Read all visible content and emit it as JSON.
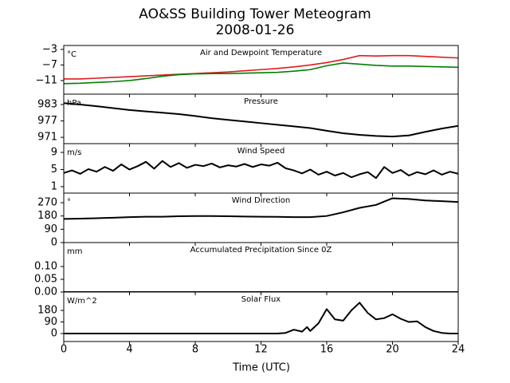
{
  "title": "AO&SS Building Tower Meteogram",
  "subtitle": "2008-01-26",
  "xlabel": "Time (UTC)",
  "xlim": [
    0,
    24
  ],
  "xticks": [
    0,
    4,
    8,
    12,
    16,
    20,
    24
  ],
  "chart_data": [
    {
      "type": "line",
      "title": "Air and Dewpoint Temperature",
      "unit": "°C",
      "x": [
        0,
        1,
        2,
        3,
        4,
        5,
        6,
        7,
        8,
        9,
        10,
        11,
        12,
        13,
        14,
        15,
        16,
        17,
        18,
        19,
        20,
        21,
        22,
        23,
        24
      ],
      "series": [
        {
          "color": "#e41a1c",
          "values": [
            -10.6,
            -10.6,
            -10.4,
            -10.2,
            -10.0,
            -9.8,
            -9.6,
            -9.4,
            -9.2,
            -9.0,
            -8.8,
            -8.5,
            -8.2,
            -7.9,
            -7.5,
            -7.0,
            -6.4,
            -5.6,
            -4.6,
            -4.7,
            -4.6,
            -4.6,
            -4.8,
            -5.0,
            -5.2
          ]
        },
        {
          "color": "#008000",
          "values": [
            -11.8,
            -11.7,
            -11.5,
            -11.3,
            -11.0,
            -10.5,
            -9.9,
            -9.5,
            -9.3,
            -9.2,
            -9.2,
            -9.1,
            -9.0,
            -8.9,
            -8.6,
            -8.2,
            -7.2,
            -6.5,
            -6.8,
            -7.1,
            -7.3,
            -7.3,
            -7.4,
            -7.5,
            -7.6
          ]
        }
      ],
      "ylim": [
        -14.5,
        -2
      ],
      "yticks": [
        {
          "value": -3,
          "label": "−3"
        },
        {
          "value": -7,
          "label": "−7"
        },
        {
          "value": -11,
          "label": "−11"
        }
      ]
    },
    {
      "type": "line",
      "title": "Pressure",
      "unit": "hPa",
      "x": [
        0,
        1,
        2,
        3,
        4,
        5,
        6,
        7,
        8,
        9,
        10,
        11,
        12,
        13,
        14,
        15,
        16,
        17,
        18,
        19,
        20,
        21,
        22,
        23,
        24
      ],
      "series": [
        {
          "color": "#000000",
          "values": [
            983.5,
            983.0,
            982.4,
            981.7,
            981.0,
            980.5,
            980.0,
            979.5,
            978.8,
            978.0,
            977.4,
            976.8,
            976.2,
            975.6,
            975.0,
            974.4,
            973.4,
            972.5,
            971.9,
            971.5,
            971.3,
            971.7,
            973.0,
            974.2,
            975.2
          ]
        }
      ],
      "ylim": [
        968.7,
        986.8
      ],
      "yticks": [
        983,
        977,
        971
      ]
    },
    {
      "type": "line",
      "title": "Wind Speed",
      "unit": "m/s",
      "x": [
        0,
        0.5,
        1,
        1.5,
        2,
        2.5,
        3,
        3.5,
        4,
        4.5,
        5,
        5.5,
        6,
        6.5,
        7,
        7.5,
        8,
        8.5,
        9,
        9.5,
        10,
        10.5,
        11,
        11.5,
        12,
        12.5,
        13,
        13.5,
        14,
        14.5,
        15,
        15.5,
        16,
        16.5,
        17,
        17.5,
        18,
        18.5,
        19,
        19.5,
        20,
        20.5,
        21,
        21.5,
        22,
        22.5,
        23,
        23.5,
        24
      ],
      "series": [
        {
          "color": "#000000",
          "values": [
            4.2,
            4.8,
            4.0,
            5.1,
            4.5,
            5.6,
            4.7,
            6.2,
            5.0,
            5.8,
            6.8,
            5.2,
            7.0,
            5.6,
            6.5,
            5.4,
            6.1,
            5.8,
            6.4,
            5.5,
            6.0,
            5.7,
            6.3,
            5.6,
            6.2,
            5.9,
            6.6,
            5.3,
            4.8,
            4.1,
            5.0,
            3.8,
            4.5,
            3.6,
            4.2,
            3.2,
            3.9,
            4.4,
            3.0,
            5.6,
            4.2,
            4.9,
            3.6,
            4.4,
            3.9,
            4.8,
            3.8,
            4.5,
            4.0
          ]
        }
      ],
      "ylim": [
        -0.5,
        11.05
      ],
      "yticks": [
        9,
        5,
        1
      ]
    },
    {
      "type": "line",
      "title": "Wind Direction",
      "unit": "°",
      "x": [
        0,
        1,
        2,
        3,
        4,
        5,
        6,
        7,
        8,
        9,
        10,
        11,
        12,
        13,
        14,
        15,
        16,
        17,
        18,
        19,
        20,
        21,
        22,
        23,
        24
      ],
      "series": [
        {
          "color": "#000000",
          "values": [
            160,
            162,
            165,
            168,
            172,
            175,
            175,
            178,
            180,
            180,
            178,
            176,
            175,
            174,
            172,
            172,
            180,
            205,
            235,
            255,
            300,
            295,
            285,
            280,
            275
          ]
        }
      ],
      "ylim": [
        0,
        335
      ],
      "yticks": [
        270,
        180,
        90,
        0
      ]
    },
    {
      "type": "line",
      "title": "Accumulated Precipitation Since 0Z",
      "unit": "mm",
      "x": [
        0,
        24
      ],
      "series": [
        {
          "color": "#000000",
          "values": [
            0,
            0
          ]
        }
      ],
      "ylim": [
        0,
        0.194
      ],
      "yticks": [
        {
          "value": 0.1,
          "label": "0.10"
        },
        {
          "value": 0.05,
          "label": "0.05"
        },
        {
          "value": 0,
          "label": "0.00"
        }
      ]
    },
    {
      "type": "line",
      "title": "Solar Flux",
      "unit": "W/m^2",
      "x": [
        0,
        13,
        13.5,
        14,
        14.5,
        14.8,
        15,
        15.5,
        16,
        16.5,
        17,
        17.5,
        18,
        18.5,
        19,
        19.5,
        20,
        20.5,
        21,
        21.5,
        22,
        22.5,
        23,
        23.5,
        24
      ],
      "series": [
        {
          "color": "#000000",
          "values": [
            0,
            0,
            5,
            30,
            15,
            50,
            20,
            80,
            190,
            110,
            100,
            180,
            240,
            160,
            110,
            120,
            150,
            115,
            90,
            95,
            50,
            20,
            5,
            0,
            0
          ]
        }
      ],
      "ylim": [
        -62,
        323
      ],
      "yticks": [
        180,
        90,
        0
      ]
    }
  ]
}
